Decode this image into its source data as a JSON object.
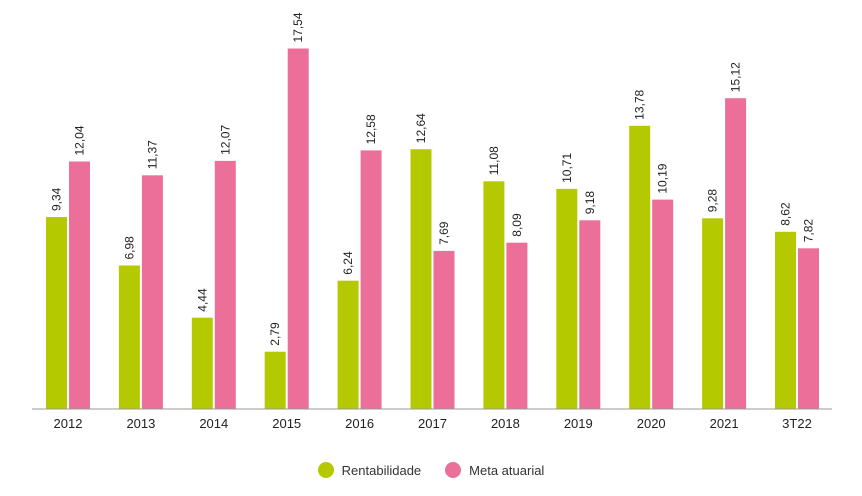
{
  "chart_data": {
    "type": "bar",
    "categories": [
      "2012",
      "2013",
      "2014",
      "2015",
      "2016",
      "2017",
      "2018",
      "2019",
      "2020",
      "2021",
      "3T22"
    ],
    "series": [
      {
        "name": "Rentabilidade",
        "color": "#b5c900",
        "values": [
          9.34,
          6.98,
          4.44,
          2.79,
          6.24,
          12.64,
          11.08,
          10.71,
          13.78,
          9.28,
          8.62
        ],
        "labels": [
          "9,34",
          "6,98",
          "4,44",
          "2,79",
          "6,24",
          "12,64",
          "11,08",
          "10,71",
          "13,78",
          "9,28",
          "8,62"
        ]
      },
      {
        "name": "Meta atuarial",
        "color": "#ec6f9a",
        "values": [
          12.04,
          11.37,
          12.07,
          17.54,
          12.58,
          7.69,
          8.09,
          9.18,
          10.19,
          15.12,
          7.82
        ],
        "labels": [
          "12,04",
          "11,37",
          "12,07",
          "17,54",
          "12,58",
          "7,69",
          "8,09",
          "9,18",
          "10,19",
          "15,12",
          "7,82"
        ]
      }
    ],
    "ylim": [
      0,
      17.54
    ],
    "grid": false,
    "legend_position": "bottom-center"
  }
}
